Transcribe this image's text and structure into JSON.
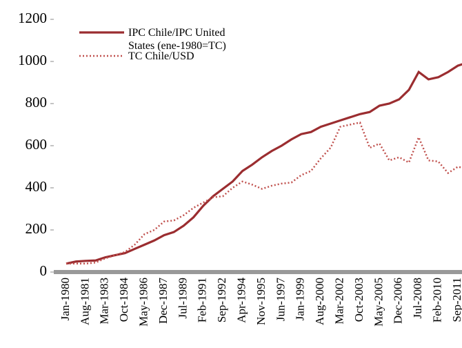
{
  "chart_data": {
    "type": "line",
    "categories": [
      "Jan-1980",
      null,
      "Aug-1981",
      null,
      "Mar-1983",
      null,
      "Oct-1984",
      null,
      "May-1986",
      null,
      "Dec-1987",
      null,
      "Jul-1989",
      null,
      "Feb-1991",
      null,
      "Sep-1992",
      null,
      "Apr-1994",
      null,
      "Nov-1995",
      null,
      "Jun-1997",
      null,
      "Jan-1999",
      null,
      "Aug-2000",
      null,
      "Mar-2002",
      null,
      "Oct-2003",
      null,
      "May-2005",
      null,
      "Dec-2006",
      null,
      "Jul-2008",
      null,
      "Feb-2010",
      null,
      "Sep-2011",
      null
    ],
    "series": [
      {
        "name": "IPC Chile/IPC United States (ene-1980=TC)",
        "color": "#9b2d30",
        "style": "solid",
        "values": [
          40,
          50,
          53,
          55,
          70,
          80,
          90,
          110,
          130,
          150,
          175,
          190,
          220,
          260,
          315,
          360,
          395,
          430,
          480,
          510,
          545,
          575,
          600,
          630,
          655,
          665,
          690,
          705,
          720,
          735,
          750,
          760,
          790,
          800,
          820,
          865,
          950,
          915,
          925,
          950,
          980,
          995
        ]
      },
      {
        "name": "TC Chile/USD",
        "color": "#c0504d",
        "style": "dotted",
        "values": [
          40,
          40,
          40,
          45,
          65,
          80,
          95,
          130,
          180,
          200,
          240,
          245,
          270,
          305,
          330,
          355,
          360,
          400,
          430,
          415,
          395,
          410,
          420,
          425,
          460,
          480,
          540,
          590,
          690,
          700,
          710,
          590,
          610,
          530,
          545,
          520,
          640,
          530,
          525,
          470,
          500,
          490
        ]
      }
    ],
    "ylim": [
      0,
      1200
    ],
    "yticks": [
      0,
      200,
      400,
      600,
      800,
      1000,
      1200
    ],
    "grid": false,
    "legend": "top-left"
  }
}
